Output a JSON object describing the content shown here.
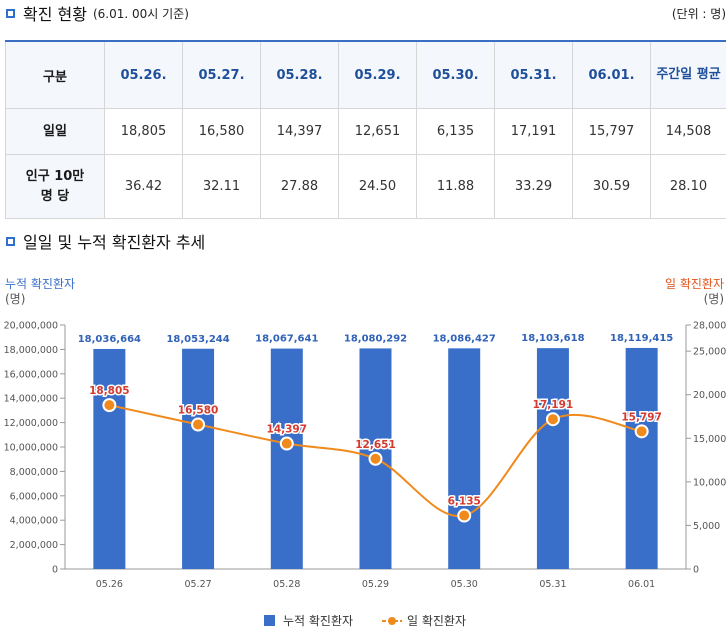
{
  "section1": {
    "title": "확진 현황",
    "subtitle": "(6.01. 00시 기준)",
    "unit": "(단위 : 명)"
  },
  "table": {
    "header_first": "구분",
    "dates": [
      "05.26.",
      "05.27.",
      "05.28.",
      "05.29.",
      "05.30.",
      "05.31.",
      "06.01."
    ],
    "header_last": "주간일 평균",
    "rows": [
      {
        "label": "일일",
        "values": [
          "18,805",
          "16,580",
          "14,397",
          "12,651",
          "6,135",
          "17,191",
          "15,797"
        ],
        "avg": "14,508"
      },
      {
        "label": "인구 10만 명 당",
        "values": [
          "36.42",
          "32.11",
          "27.88",
          "24.50",
          "11.88",
          "33.29",
          "30.59"
        ],
        "avg": "28.10"
      }
    ]
  },
  "section2": {
    "title": "일일 및 누적 확진환자 추세"
  },
  "chart_data": {
    "type": "bar",
    "categories": [
      "05.26",
      "05.27",
      "05.28",
      "05.29",
      "05.30",
      "05.31",
      "06.01"
    ],
    "series": [
      {
        "name": "누적 확진환자",
        "type": "bar",
        "axis": "left",
        "color": "#3a6fc9",
        "values": [
          18036664,
          18053244,
          18067641,
          18080292,
          18086427,
          18103618,
          18119415
        ],
        "labels": [
          "18,036,664",
          "18,053,244",
          "18,067,641",
          "18,080,292",
          "18,086,427",
          "18,103,618",
          "18,119,415"
        ]
      },
      {
        "name": "일 확진환자",
        "type": "line",
        "axis": "right",
        "color": "#f08a1c",
        "values": [
          18805,
          16580,
          14397,
          12651,
          6135,
          17191,
          15797
        ],
        "labels": [
          "18,805",
          "16,580",
          "14,397",
          "12,651",
          "6,135",
          "17,191",
          "15,797"
        ]
      }
    ],
    "left_axis": {
      "title": "누적 확진환자",
      "unit": "(명)",
      "ylim": [
        0,
        20000000
      ],
      "ticks": [
        "0",
        "2,000,000",
        "4,000,000",
        "6,000,000",
        "8,000,000",
        "10,000,000",
        "12,000,000",
        "14,000,000",
        "16,000,000",
        "18,000,000",
        "20,000,000"
      ]
    },
    "right_axis": {
      "title": "일 확진환자",
      "unit": "(명)",
      "ylim": [
        0,
        28000
      ],
      "ticks": [
        "0",
        "5,000",
        "10,000",
        "15,000",
        "20,000",
        "25,000",
        "28,000"
      ]
    },
    "grid": false,
    "legend_position": "bottom-center"
  }
}
